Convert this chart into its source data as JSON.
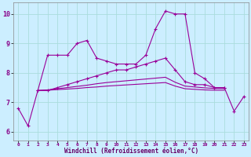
{
  "x": [
    0,
    1,
    2,
    3,
    4,
    5,
    6,
    7,
    8,
    9,
    10,
    11,
    12,
    13,
    14,
    15,
    16,
    17,
    18,
    19,
    20,
    21,
    22,
    23
  ],
  "line1": [
    6.8,
    6.2,
    7.4,
    8.6,
    8.6,
    8.6,
    9.0,
    9.1,
    8.5,
    8.4,
    8.3,
    8.3,
    8.3,
    8.6,
    9.5,
    10.1,
    10.0,
    10.0,
    8.0,
    7.8,
    7.5,
    7.5,
    6.7,
    7.2
  ],
  "line2": [
    null,
    null,
    7.4,
    7.4,
    7.5,
    7.6,
    7.7,
    7.8,
    7.9,
    8.0,
    8.1,
    8.1,
    8.2,
    8.3,
    8.4,
    8.5,
    8.1,
    7.7,
    7.6,
    7.6,
    7.5,
    7.5,
    null,
    null
  ],
  "line3": [
    null,
    null,
    7.4,
    7.42,
    7.46,
    7.5,
    7.54,
    7.58,
    7.63,
    7.67,
    7.7,
    7.73,
    7.76,
    7.79,
    7.82,
    7.85,
    7.68,
    7.55,
    7.52,
    7.49,
    7.47,
    7.47,
    null,
    null
  ],
  "line4": [
    null,
    null,
    7.4,
    7.41,
    7.43,
    7.45,
    7.47,
    7.5,
    7.52,
    7.55,
    7.57,
    7.59,
    7.61,
    7.63,
    7.65,
    7.67,
    7.55,
    7.46,
    7.44,
    7.42,
    7.41,
    7.41,
    null,
    null
  ],
  "bg_color": "#cceeff",
  "grid_color": "#aadddd",
  "line_color": "#990099",
  "xlabel": "Windchill (Refroidissement éolien,°C)",
  "ylim": [
    5.7,
    10.4
  ],
  "xlim": [
    -0.5,
    23.5
  ],
  "yticks": [
    6,
    7,
    8,
    9,
    10
  ],
  "xticks": [
    0,
    1,
    2,
    3,
    4,
    5,
    6,
    7,
    8,
    9,
    10,
    11,
    12,
    13,
    14,
    15,
    16,
    17,
    18,
    19,
    20,
    21,
    22,
    23
  ]
}
